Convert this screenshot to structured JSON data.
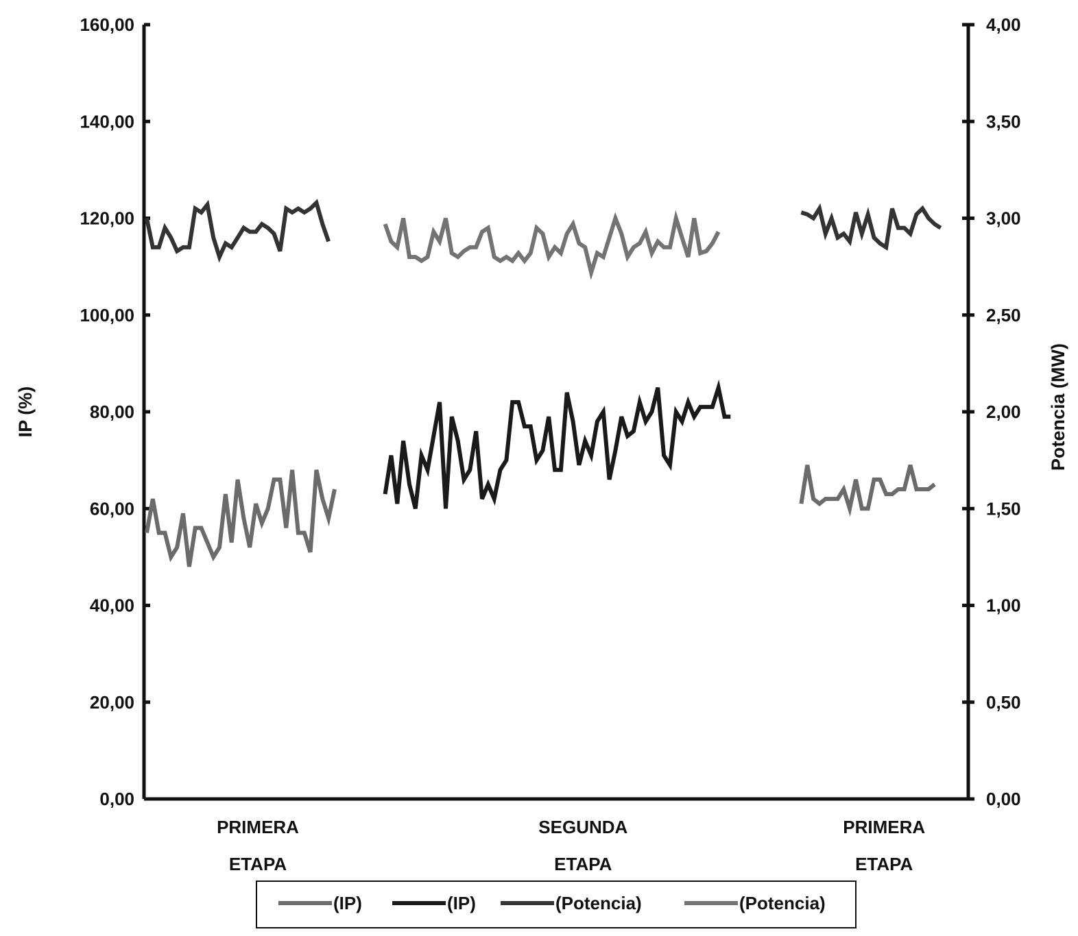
{
  "chart_data": {
    "type": "line",
    "title": "",
    "xlabel": "",
    "ylabel": "IP (%)",
    "y2label": "Potencia (MW)",
    "ylim": [
      0,
      160
    ],
    "y2lim": [
      0,
      4
    ],
    "y_ticks": [
      "0,00",
      "20,00",
      "40,00",
      "60,00",
      "80,00",
      "100,00",
      "120,00",
      "140,00",
      "160,00"
    ],
    "y2_ticks": [
      "0,00",
      "0,50",
      "1,00",
      "1,50",
      "2,00",
      "2,50",
      "3,00",
      "3,50",
      "4,00"
    ],
    "grid": false,
    "legend_position": "bottom",
    "stages": [
      {
        "line1": "PRIMERA",
        "line2": "ETAPA",
        "x_range": [
          0,
          55
        ]
      },
      {
        "line1": "SEGUNDA",
        "line2": "ETAPA",
        "x_range": [
          59,
          157
        ]
      },
      {
        "line1": "PRIMERA",
        "line2": "ETAPA",
        "x_range": [
          162,
          203
        ]
      }
    ],
    "series": [
      {
        "name": "(IP)",
        "axis": "left",
        "color": "#6b6b6b",
        "x_start": 0,
        "x_step": 1.5,
        "values": [
          55,
          62,
          55,
          55,
          50,
          52,
          59,
          48,
          56,
          56,
          53,
          50,
          52,
          63,
          53,
          66,
          58,
          52,
          61,
          57,
          60,
          66,
          66,
          56,
          68,
          55,
          55,
          51,
          68,
          62,
          58,
          64
        ]
      },
      {
        "name": "(IP)",
        "axis": "left",
        "color": "#1a1a1a",
        "x_start": 59,
        "x_step": 1.5,
        "values": [
          63,
          71,
          61,
          74,
          65,
          60,
          71,
          68,
          75,
          82,
          60,
          79,
          74,
          66,
          68,
          76,
          62,
          65,
          62,
          68,
          70,
          82,
          82,
          77,
          77,
          70,
          72,
          79,
          68,
          68,
          84,
          78,
          69,
          74,
          71,
          78,
          80,
          66,
          72,
          79,
          75,
          76,
          82,
          78,
          80,
          85,
          71,
          69,
          80,
          78,
          82,
          79,
          81,
          81,
          81,
          85,
          79,
          79
        ]
      },
      {
        "name": "(Potencia)",
        "axis": "right",
        "color": "#333333",
        "x_start": 0,
        "x_step": 1.5,
        "values": [
          3.0,
          2.85,
          2.85,
          2.95,
          2.9,
          2.83,
          2.85,
          2.85,
          3.05,
          3.03,
          3.07,
          2.9,
          2.8,
          2.87,
          2.85,
          2.9,
          2.95,
          2.93,
          2.93,
          2.97,
          2.95,
          2.92,
          2.83,
          3.05,
          3.03,
          3.05,
          3.03,
          3.05,
          3.08,
          2.97,
          2.88
        ]
      },
      {
        "name": "(Potencia)",
        "axis": "right",
        "color": "#737373",
        "x_start": 59,
        "x_step": 1.5,
        "values": [
          2.97,
          2.88,
          2.85,
          3.0,
          2.8,
          2.8,
          2.78,
          2.8,
          2.93,
          2.88,
          3.0,
          2.82,
          2.8,
          2.83,
          2.85,
          2.85,
          2.93,
          2.95,
          2.8,
          2.78,
          2.8,
          2.78,
          2.82,
          2.78,
          2.82,
          2.95,
          2.92,
          2.8,
          2.85,
          2.82,
          2.92,
          2.97,
          2.87,
          2.85,
          2.72,
          2.82,
          2.8,
          2.9,
          3.0,
          2.92,
          2.8,
          2.85,
          2.87,
          2.93,
          2.82,
          2.88,
          2.85,
          2.85,
          3.0,
          2.9,
          2.8,
          3.0,
          2.82,
          2.83,
          2.87,
          2.93
        ]
      },
      {
        "name": "(IP)",
        "axis": "left",
        "color": "#6b6b6b",
        "x_start": 162,
        "x_step": 1.5,
        "values": [
          61,
          69,
          62,
          61,
          62,
          62,
          62,
          64,
          60,
          66,
          60,
          60,
          66,
          66,
          63,
          63,
          64,
          64,
          69,
          64,
          64,
          64,
          65
        ]
      },
      {
        "name": "(Potencia)",
        "axis": "right",
        "color": "#333333",
        "x_start": 162,
        "x_step": 1.5,
        "values": [
          3.03,
          3.02,
          3.0,
          3.05,
          2.92,
          3.0,
          2.9,
          2.92,
          2.88,
          3.03,
          2.92,
          3.02,
          2.9,
          2.87,
          2.85,
          3.05,
          2.95,
          2.95,
          2.92,
          3.02,
          3.05,
          3.0,
          2.97,
          2.95
        ]
      }
    ],
    "legend": [
      {
        "label": "(IP)",
        "color": "#6b6b6b"
      },
      {
        "label": "(IP)",
        "color": "#1a1a1a"
      },
      {
        "label": "(Potencia)",
        "color": "#333333"
      },
      {
        "label": "(Potencia)",
        "color": "#737373"
      }
    ]
  }
}
